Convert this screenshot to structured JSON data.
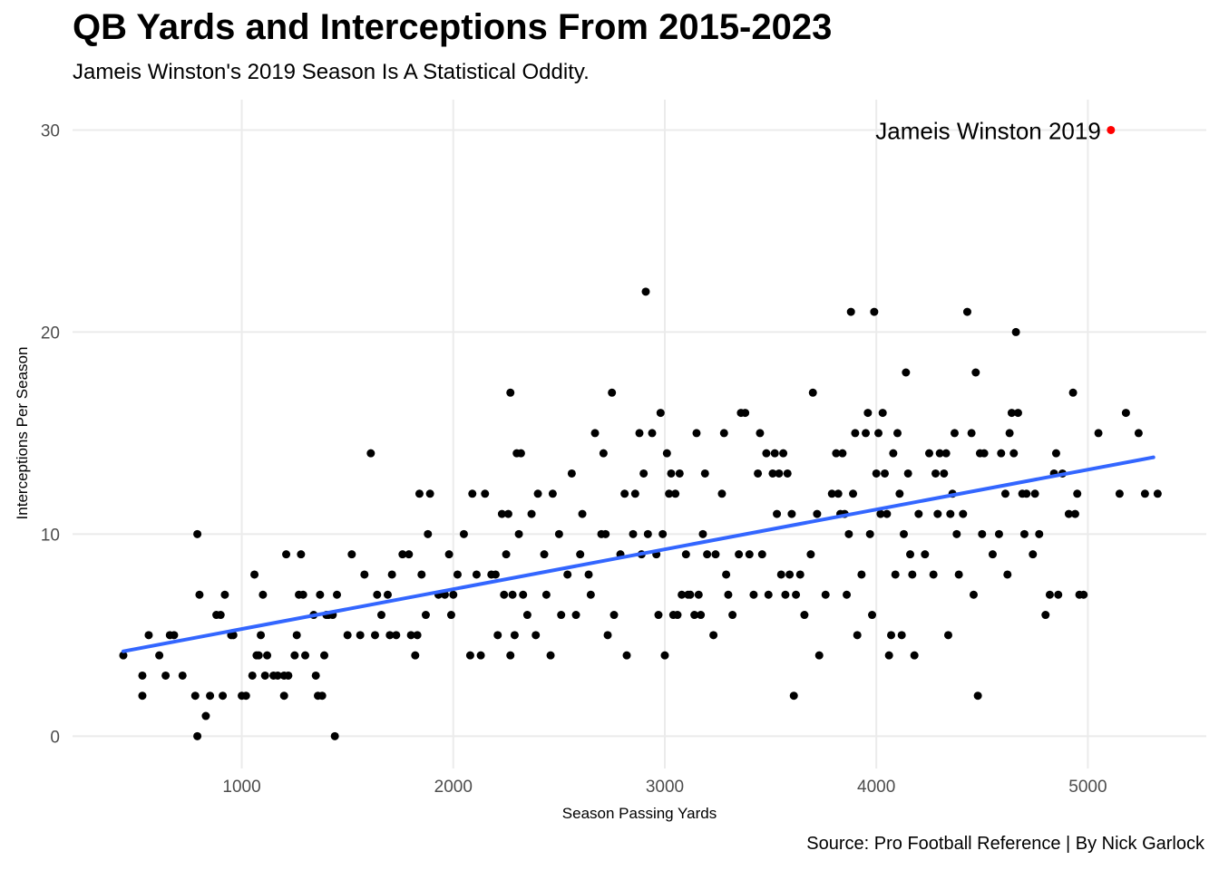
{
  "chart_data": {
    "type": "scatter",
    "title": "QB Yards and Interceptions From 2015-2023",
    "subtitle": "Jameis Winston's 2019 Season Is A Statistical Oddity.",
    "caption": "Source: Pro Football Reference | By Nick Garlock",
    "xlabel": "Season Passing Yards",
    "ylabel": "Interceptions Per Season",
    "xlim": [
      200,
      5560
    ],
    "ylim": [
      -1.6,
      31.5
    ],
    "x_ticks": [
      1000,
      2000,
      3000,
      4000,
      5000
    ],
    "y_ticks": [
      0,
      10,
      20,
      30
    ],
    "x_tick_labels": [
      "1000",
      "2000",
      "3000",
      "4000",
      "5000"
    ],
    "y_tick_labels": [
      "0",
      "10",
      "20",
      "30"
    ],
    "grid": true,
    "legend": "none",
    "point_color": "#000000",
    "highlight_color": "#ff0000",
    "trend_color": "#3366ff",
    "trend_line": {
      "x": [
        440,
        5310
      ],
      "y": [
        4.2,
        13.8
      ]
    },
    "highlight": {
      "label": "Jameis Winston 2019",
      "x": 5109,
      "y": 30
    },
    "points": [
      [
        440,
        4
      ],
      [
        530,
        3
      ],
      [
        530,
        2
      ],
      [
        560,
        5
      ],
      [
        610,
        4
      ],
      [
        640,
        3
      ],
      [
        660,
        5
      ],
      [
        680,
        5
      ],
      [
        720,
        3
      ],
      [
        780,
        2
      ],
      [
        790,
        10
      ],
      [
        790,
        0
      ],
      [
        800,
        7
      ],
      [
        830,
        1
      ],
      [
        850,
        2
      ],
      [
        880,
        6
      ],
      [
        900,
        6
      ],
      [
        910,
        2
      ],
      [
        920,
        7
      ],
      [
        950,
        5
      ],
      [
        960,
        5
      ],
      [
        1000,
        2
      ],
      [
        1020,
        2
      ],
      [
        1050,
        3
      ],
      [
        1060,
        8
      ],
      [
        1070,
        4
      ],
      [
        1080,
        4
      ],
      [
        1090,
        5
      ],
      [
        1100,
        7
      ],
      [
        1110,
        3
      ],
      [
        1120,
        4
      ],
      [
        1150,
        3
      ],
      [
        1170,
        3
      ],
      [
        1200,
        3
      ],
      [
        1200,
        2
      ],
      [
        1210,
        9
      ],
      [
        1220,
        3
      ],
      [
        1250,
        4
      ],
      [
        1260,
        5
      ],
      [
        1270,
        7
      ],
      [
        1280,
        9
      ],
      [
        1290,
        7
      ],
      [
        1300,
        4
      ],
      [
        1340,
        6
      ],
      [
        1350,
        3
      ],
      [
        1360,
        2
      ],
      [
        1370,
        7
      ],
      [
        1380,
        2
      ],
      [
        1390,
        4
      ],
      [
        1400,
        6
      ],
      [
        1410,
        6
      ],
      [
        1430,
        6
      ],
      [
        1440,
        0
      ],
      [
        1450,
        7
      ],
      [
        1500,
        5
      ],
      [
        1520,
        9
      ],
      [
        1560,
        5
      ],
      [
        1580,
        8
      ],
      [
        1610,
        14
      ],
      [
        1630,
        5
      ],
      [
        1640,
        7
      ],
      [
        1660,
        6
      ],
      [
        1690,
        7
      ],
      [
        1700,
        5
      ],
      [
        1710,
        8
      ],
      [
        1730,
        5
      ],
      [
        1760,
        9
      ],
      [
        1790,
        9
      ],
      [
        1800,
        5
      ],
      [
        1820,
        4
      ],
      [
        1830,
        5
      ],
      [
        1840,
        12
      ],
      [
        1850,
        8
      ],
      [
        1870,
        6
      ],
      [
        1880,
        10
      ],
      [
        1890,
        12
      ],
      [
        1930,
        7
      ],
      [
        1960,
        7
      ],
      [
        1980,
        9
      ],
      [
        1990,
        6
      ],
      [
        2000,
        7
      ],
      [
        2020,
        8
      ],
      [
        2050,
        10
      ],
      [
        2080,
        4
      ],
      [
        2090,
        12
      ],
      [
        2110,
        8
      ],
      [
        2130,
        4
      ],
      [
        2150,
        12
      ],
      [
        2180,
        8
      ],
      [
        2200,
        8
      ],
      [
        2210,
        5
      ],
      [
        2230,
        11
      ],
      [
        2240,
        7
      ],
      [
        2250,
        9
      ],
      [
        2260,
        11
      ],
      [
        2270,
        17
      ],
      [
        2270,
        4
      ],
      [
        2280,
        7
      ],
      [
        2290,
        5
      ],
      [
        2300,
        14
      ],
      [
        2310,
        10
      ],
      [
        2320,
        14
      ],
      [
        2330,
        7
      ],
      [
        2350,
        6
      ],
      [
        2370,
        11
      ],
      [
        2390,
        5
      ],
      [
        2400,
        12
      ],
      [
        2430,
        9
      ],
      [
        2440,
        7
      ],
      [
        2460,
        4
      ],
      [
        2470,
        12
      ],
      [
        2500,
        10
      ],
      [
        2510,
        6
      ],
      [
        2540,
        8
      ],
      [
        2560,
        13
      ],
      [
        2580,
        6
      ],
      [
        2600,
        9
      ],
      [
        2610,
        11
      ],
      [
        2640,
        8
      ],
      [
        2650,
        7
      ],
      [
        2670,
        15
      ],
      [
        2700,
        10
      ],
      [
        2710,
        14
      ],
      [
        2720,
        10
      ],
      [
        2730,
        5
      ],
      [
        2750,
        17
      ],
      [
        2760,
        6
      ],
      [
        2790,
        9
      ],
      [
        2810,
        12
      ],
      [
        2820,
        4
      ],
      [
        2850,
        10
      ],
      [
        2860,
        12
      ],
      [
        2880,
        15
      ],
      [
        2890,
        9
      ],
      [
        2900,
        13
      ],
      [
        2910,
        22
      ],
      [
        2920,
        10
      ],
      [
        2940,
        15
      ],
      [
        2960,
        9
      ],
      [
        2970,
        6
      ],
      [
        2980,
        16
      ],
      [
        2990,
        10
      ],
      [
        3000,
        4
      ],
      [
        3010,
        14
      ],
      [
        3020,
        12
      ],
      [
        3030,
        13
      ],
      [
        3040,
        6
      ],
      [
        3050,
        12
      ],
      [
        3060,
        6
      ],
      [
        3070,
        13
      ],
      [
        3080,
        7
      ],
      [
        3100,
        9
      ],
      [
        3110,
        7
      ],
      [
        3120,
        7
      ],
      [
        3140,
        6
      ],
      [
        3150,
        15
      ],
      [
        3160,
        7
      ],
      [
        3170,
        6
      ],
      [
        3180,
        10
      ],
      [
        3190,
        13
      ],
      [
        3200,
        9
      ],
      [
        3230,
        5
      ],
      [
        3240,
        9
      ],
      [
        3270,
        12
      ],
      [
        3280,
        15
      ],
      [
        3290,
        8
      ],
      [
        3300,
        7
      ],
      [
        3320,
        6
      ],
      [
        3350,
        9
      ],
      [
        3360,
        16
      ],
      [
        3380,
        16
      ],
      [
        3400,
        9
      ],
      [
        3420,
        7
      ],
      [
        3440,
        13
      ],
      [
        3450,
        15
      ],
      [
        3460,
        9
      ],
      [
        3480,
        14
      ],
      [
        3490,
        7
      ],
      [
        3510,
        13
      ],
      [
        3520,
        14
      ],
      [
        3530,
        11
      ],
      [
        3540,
        13
      ],
      [
        3550,
        8
      ],
      [
        3560,
        14
      ],
      [
        3570,
        7
      ],
      [
        3580,
        13
      ],
      [
        3590,
        8
      ],
      [
        3600,
        11
      ],
      [
        3610,
        2
      ],
      [
        3620,
        7
      ],
      [
        3640,
        8
      ],
      [
        3660,
        6
      ],
      [
        3690,
        9
      ],
      [
        3700,
        17
      ],
      [
        3720,
        11
      ],
      [
        3730,
        4
      ],
      [
        3760,
        7
      ],
      [
        3790,
        12
      ],
      [
        3810,
        14
      ],
      [
        3820,
        12
      ],
      [
        3830,
        11
      ],
      [
        3840,
        14
      ],
      [
        3850,
        11
      ],
      [
        3860,
        7
      ],
      [
        3870,
        10
      ],
      [
        3880,
        21
      ],
      [
        3890,
        12
      ],
      [
        3900,
        15
      ],
      [
        3910,
        5
      ],
      [
        3930,
        8
      ],
      [
        3950,
        15
      ],
      [
        3960,
        16
      ],
      [
        3970,
        10
      ],
      [
        3980,
        6
      ],
      [
        3990,
        21
      ],
      [
        4000,
        13
      ],
      [
        4010,
        15
      ],
      [
        4020,
        11
      ],
      [
        4030,
        16
      ],
      [
        4040,
        13
      ],
      [
        4050,
        11
      ],
      [
        4060,
        4
      ],
      [
        4070,
        5
      ],
      [
        4080,
        14
      ],
      [
        4090,
        8
      ],
      [
        4100,
        15
      ],
      [
        4110,
        12
      ],
      [
        4120,
        5
      ],
      [
        4130,
        10
      ],
      [
        4140,
        18
      ],
      [
        4150,
        13
      ],
      [
        4160,
        9
      ],
      [
        4170,
        8
      ],
      [
        4180,
        4
      ],
      [
        4200,
        11
      ],
      [
        4230,
        9
      ],
      [
        4250,
        14
      ],
      [
        4270,
        8
      ],
      [
        4280,
        13
      ],
      [
        4290,
        11
      ],
      [
        4300,
        14
      ],
      [
        4320,
        13
      ],
      [
        4330,
        14
      ],
      [
        4340,
        5
      ],
      [
        4350,
        11
      ],
      [
        4360,
        12
      ],
      [
        4370,
        15
      ],
      [
        4380,
        10
      ],
      [
        4390,
        8
      ],
      [
        4410,
        11
      ],
      [
        4430,
        21
      ],
      [
        4450,
        15
      ],
      [
        4460,
        7
      ],
      [
        4470,
        18
      ],
      [
        4480,
        2
      ],
      [
        4490,
        14
      ],
      [
        4500,
        10
      ],
      [
        4510,
        14
      ],
      [
        4550,
        9
      ],
      [
        4580,
        10
      ],
      [
        4590,
        14
      ],
      [
        4610,
        12
      ],
      [
        4620,
        8
      ],
      [
        4630,
        15
      ],
      [
        4640,
        16
      ],
      [
        4650,
        14
      ],
      [
        4660,
        20
      ],
      [
        4670,
        16
      ],
      [
        4690,
        12
      ],
      [
        4700,
        10
      ],
      [
        4710,
        12
      ],
      [
        4740,
        9
      ],
      [
        4750,
        12
      ],
      [
        4770,
        10
      ],
      [
        4800,
        6
      ],
      [
        4820,
        7
      ],
      [
        4840,
        13
      ],
      [
        4850,
        14
      ],
      [
        4860,
        7
      ],
      [
        4880,
        13
      ],
      [
        4910,
        11
      ],
      [
        4930,
        17
      ],
      [
        4940,
        11
      ],
      [
        4950,
        12
      ],
      [
        4960,
        7
      ],
      [
        4980,
        7
      ],
      [
        5050,
        15
      ],
      [
        5150,
        12
      ],
      [
        5180,
        16
      ],
      [
        5240,
        15
      ],
      [
        5270,
        12
      ],
      [
        5330,
        12
      ]
    ]
  }
}
